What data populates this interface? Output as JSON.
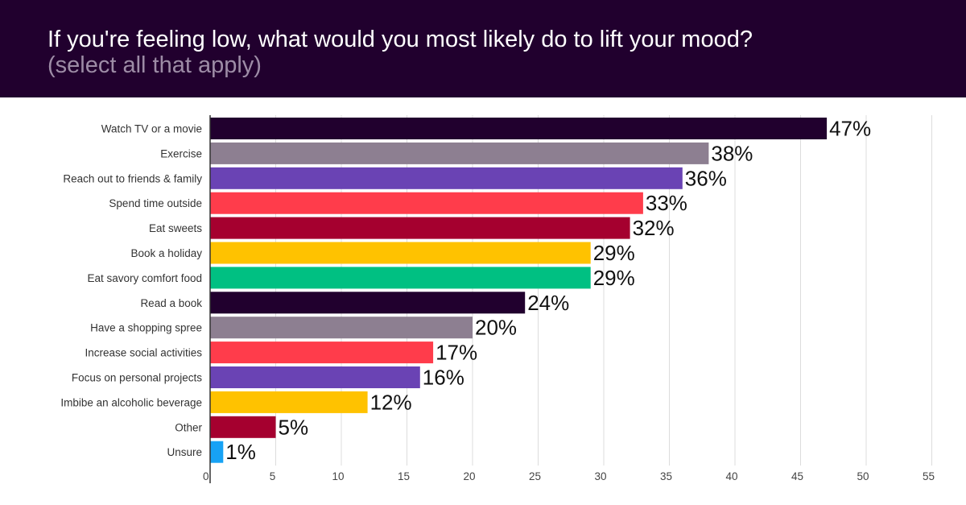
{
  "header": {
    "title": "If you're feeling low, what would you most likely do to lift your mood?",
    "subtitle": "(select all that apply)"
  },
  "chart_data": {
    "type": "bar",
    "orientation": "horizontal",
    "title": "If you're feeling low, what would you most likely do to lift your mood?",
    "subtitle": "(select all that apply)",
    "categories": [
      "Watch TV or a movie",
      "Exercise",
      "Reach out to friends & family",
      "Spend time outside",
      "Eat sweets",
      "Book a holiday",
      "Eat savory comfort food",
      "Read a book",
      "Have a shopping spree",
      "Increase social activities",
      "Focus on personal projects",
      "Imbibe an alcoholic beverage",
      "Other",
      "Unsure"
    ],
    "values": [
      47,
      38,
      36,
      33,
      32,
      29,
      29,
      24,
      20,
      17,
      16,
      12,
      5,
      1
    ],
    "data_labels": [
      "47%",
      "38%",
      "36%",
      "33%",
      "32%",
      "29%",
      "29%",
      "24%",
      "20%",
      "17%",
      "16%",
      "12%",
      "5%",
      "1%"
    ],
    "colors": [
      "#21002e",
      "#8d7f91",
      "#6a43b4",
      "#ff3c4b",
      "#a5002f",
      "#ffc200",
      "#00c082",
      "#21002e",
      "#8d7f91",
      "#ff3c4b",
      "#6a43b4",
      "#ffc200",
      "#a5002f",
      "#17a2f5"
    ],
    "xlim": [
      0,
      55
    ],
    "xticks": [
      0,
      5,
      10,
      15,
      20,
      25,
      30,
      35,
      40,
      45,
      50,
      55
    ],
    "grid": true,
    "legend": "none"
  }
}
